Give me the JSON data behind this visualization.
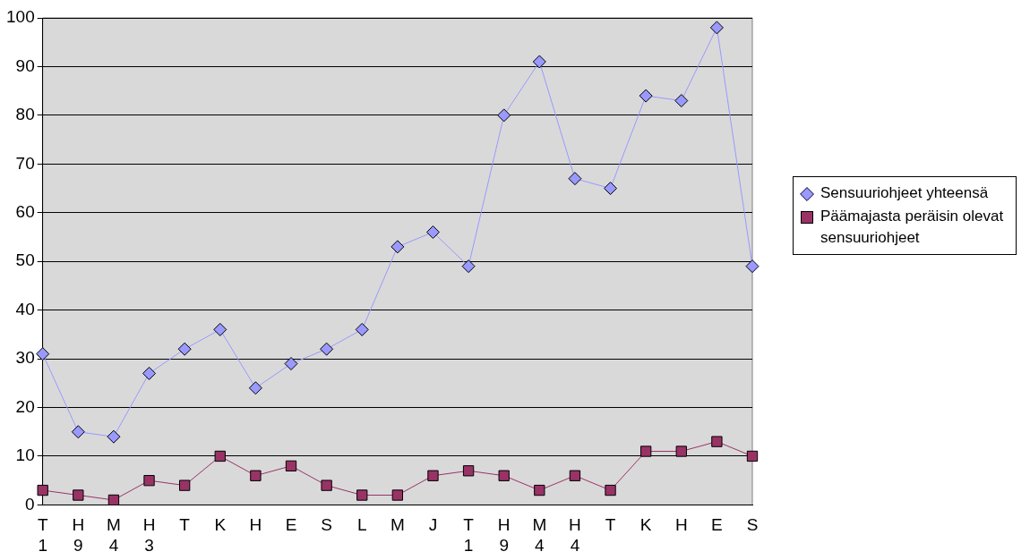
{
  "chart_data": {
    "type": "line",
    "categories": [
      "T\n1",
      "H\n9",
      "M\n4",
      "H\n3",
      "T",
      "K",
      "H",
      "E",
      "S",
      "L",
      "M",
      "J",
      "T\n1",
      "H\n9",
      "M\n4",
      "H\n4",
      "T",
      "K",
      "H",
      "E",
      "S"
    ],
    "series": [
      {
        "name": "Sensuuriohjeet yhteensä",
        "color": "#9999ff",
        "marker": "diamond",
        "values": [
          31,
          15,
          14,
          27,
          32,
          36,
          24,
          29,
          32,
          36,
          53,
          56,
          49,
          80,
          91,
          67,
          65,
          84,
          83,
          98,
          49
        ]
      },
      {
        "name": "Päämajasta peräisin olevat sensuuriohjeet",
        "color": "#993366",
        "marker": "square",
        "values": [
          3,
          2,
          1,
          5,
          4,
          10,
          6,
          8,
          4,
          2,
          2,
          6,
          7,
          6,
          3,
          6,
          3,
          11,
          11,
          13,
          10
        ]
      }
    ],
    "ylim": [
      0,
      100
    ],
    "yticks": [
      0,
      10,
      20,
      30,
      40,
      50,
      60,
      70,
      80,
      90,
      100
    ],
    "grid": "y",
    "legend": "right"
  }
}
